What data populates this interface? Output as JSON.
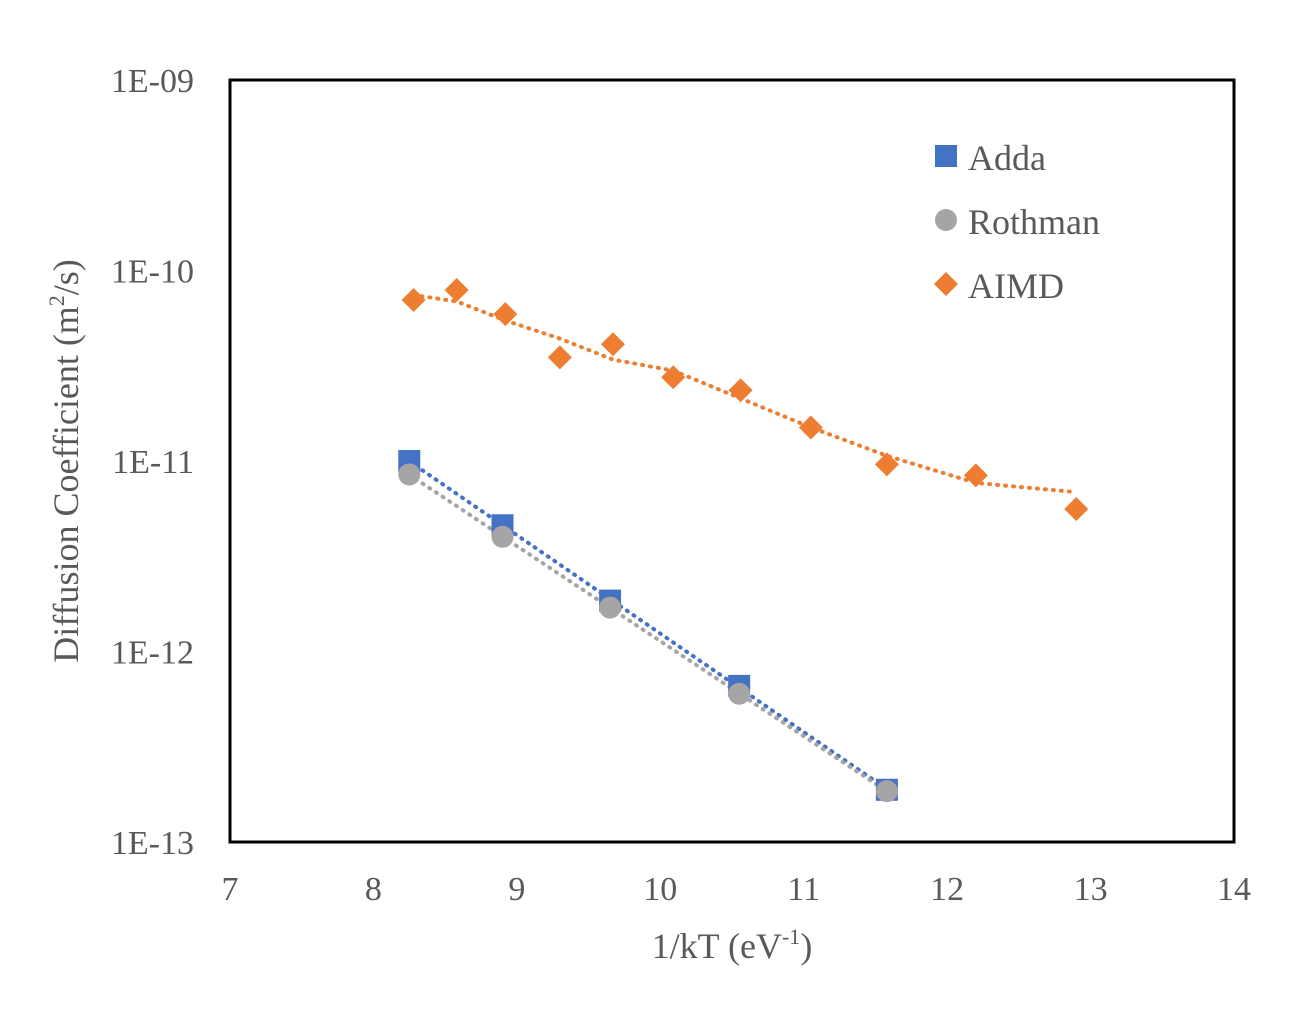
{
  "chart_data": {
    "type": "scatter",
    "xlabel": "1/kT (eV",
    "xlabel_sup": "-1",
    "xlabel_tail": ")",
    "ylabel": "Diffusion Coefficient (m",
    "ylabel_sup": "2",
    "ylabel_tail": "/s)",
    "xlim": [
      7,
      14
    ],
    "ylim": [
      1e-13,
      1e-09
    ],
    "yscale": "log",
    "x_ticks": [
      "7",
      "8",
      "9",
      "10",
      "11",
      "12",
      "13",
      "14"
    ],
    "y_ticks": [
      "1E-13",
      "1E-12",
      "1E-11",
      "1E-10",
      "1E-09"
    ],
    "grid": false,
    "legend_position": "top-right",
    "trendline_style": "dotted",
    "series": [
      {
        "name": "Adda",
        "marker": "square",
        "color": "#4472C4",
        "x": [
          8.25,
          8.9,
          9.65,
          10.55,
          11.58
        ],
        "y": [
          1e-11,
          4.6e-12,
          1.85e-12,
          6.6e-13,
          1.88e-13
        ]
      },
      {
        "name": "Rothman",
        "marker": "circle",
        "color": "#A5A5A5",
        "x": [
          8.25,
          8.9,
          9.65,
          10.55,
          11.58
        ],
        "y": [
          8.5e-12,
          4e-12,
          1.7e-12,
          6e-13,
          1.85e-13
        ]
      },
      {
        "name": "AIMD",
        "marker": "diamond",
        "color": "#ED7D31",
        "x": [
          8.28,
          8.58,
          8.92,
          9.3,
          9.67,
          10.09,
          10.56,
          11.05,
          11.58,
          12.2,
          12.9
        ],
        "y": [
          7e-11,
          7.9e-11,
          5.9e-11,
          3.5e-11,
          4.1e-11,
          2.75e-11,
          2.35e-11,
          1.5e-11,
          9.6e-12,
          8.4e-12,
          5.6e-12
        ]
      }
    ]
  }
}
